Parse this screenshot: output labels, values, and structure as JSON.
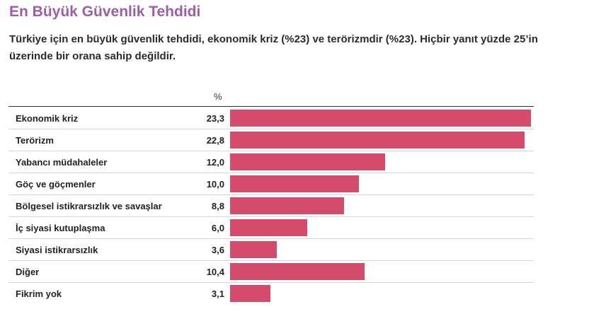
{
  "title": "En Büyük Güvenlik Tehdidi",
  "subtitle": "Türkiye için en büyük güvenlik tehdidi, ekonomik kriz (%23) ve terörizmdir (%23). Hiçbir yanıt yüzde 25’in üzerinde bir orana sahip değildir.",
  "unit_label": "%",
  "colors": {
    "bar": "#d44b6c",
    "title": "#9c5fa3"
  },
  "chart_data": {
    "type": "bar",
    "orientation": "horizontal",
    "title": "En Büyük Güvenlik Tehdidi",
    "unit": "%",
    "categories": [
      "Ekonomik kriz",
      "Terörizm",
      "Yabancı müdahaleler",
      "Göç ve göçmenler",
      "Bölgesel istikrarsızlık ve savaşlar",
      "İç siyasi kutuplaşma",
      "Siyasi istikrarsızlık",
      "Diğer",
      "Fikrim yok"
    ],
    "values": [
      23.3,
      22.8,
      12.0,
      10.0,
      8.8,
      6.0,
      3.6,
      10.4,
      3.1
    ],
    "value_labels": [
      "23,3",
      "22,8",
      "12,0",
      "10,0",
      "8,8",
      "6,0",
      "3,6",
      "10,4",
      "3,1"
    ],
    "xlim": [
      0,
      23.3
    ],
    "grid": false,
    "legend": "none"
  }
}
